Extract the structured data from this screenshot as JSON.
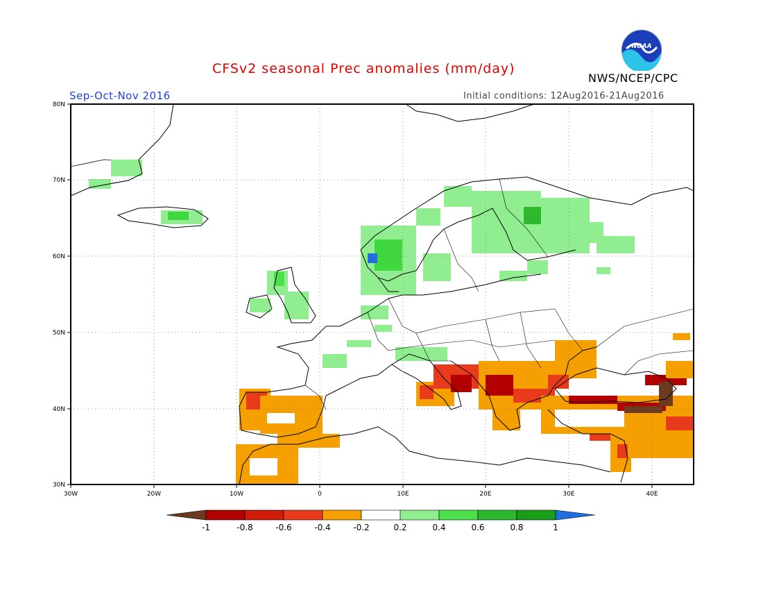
{
  "header": {
    "title": "CFSv2 seasonal Prec anomalies (mm/day)",
    "season": "Sep-Oct-Nov 2016",
    "initial_conditions": "Initial conditions: 12Aug2016-21Aug2016",
    "agency": "NWS/NCEP/CPC",
    "logo_text": "NOAA"
  },
  "map": {
    "region": "Europe",
    "lon_range": [
      -30,
      45
    ],
    "lat_range": [
      30,
      80
    ],
    "lat_ticks": [
      "30N",
      "40N",
      "50N",
      "60N",
      "70N",
      "80N"
    ],
    "lon_ticks": [
      "30W",
      "20W",
      "10W",
      "0",
      "10E",
      "20E",
      "30E",
      "40E"
    ],
    "gridlines": "dotted"
  },
  "colorbar": {
    "labels": [
      "-1",
      "-0.8",
      "-0.6",
      "-0.4",
      "-0.2",
      "0.2",
      "0.4",
      "0.6",
      "0.8",
      "1"
    ],
    "colors": [
      "#6b3a1f",
      "#b30000",
      "#e83b1c",
      "#f5a000",
      "#ffffff",
      "#90ee90",
      "#4ce04c",
      "#2eb82e",
      "#1a9e1a",
      "#1f6fe0"
    ]
  },
  "anomaly_regions": [
    {
      "name": "Norway west coast",
      "category": "0.6",
      "lon": 7,
      "lat": 61
    },
    {
      "name": "Finland",
      "category": "0.4",
      "lon": 27,
      "lat": 64
    },
    {
      "name": "Iceland",
      "category": "0.4",
      "lon": -19,
      "lat": 65
    },
    {
      "name": "Iberia",
      "category": "-0.4",
      "lon": -5,
      "lat": 39
    },
    {
      "name": "Morocco",
      "category": "-0.4",
      "lon": -7,
      "lat": 33
    },
    {
      "name": "Balkans",
      "category": "-0.6",
      "lon": 20,
      "lat": 42
    },
    {
      "name": "Turkey",
      "category": "-0.8",
      "lon": 35,
      "lat": 41
    },
    {
      "name": "Caucasus",
      "category": "-1",
      "lon": 41,
      "lat": 40
    }
  ]
}
